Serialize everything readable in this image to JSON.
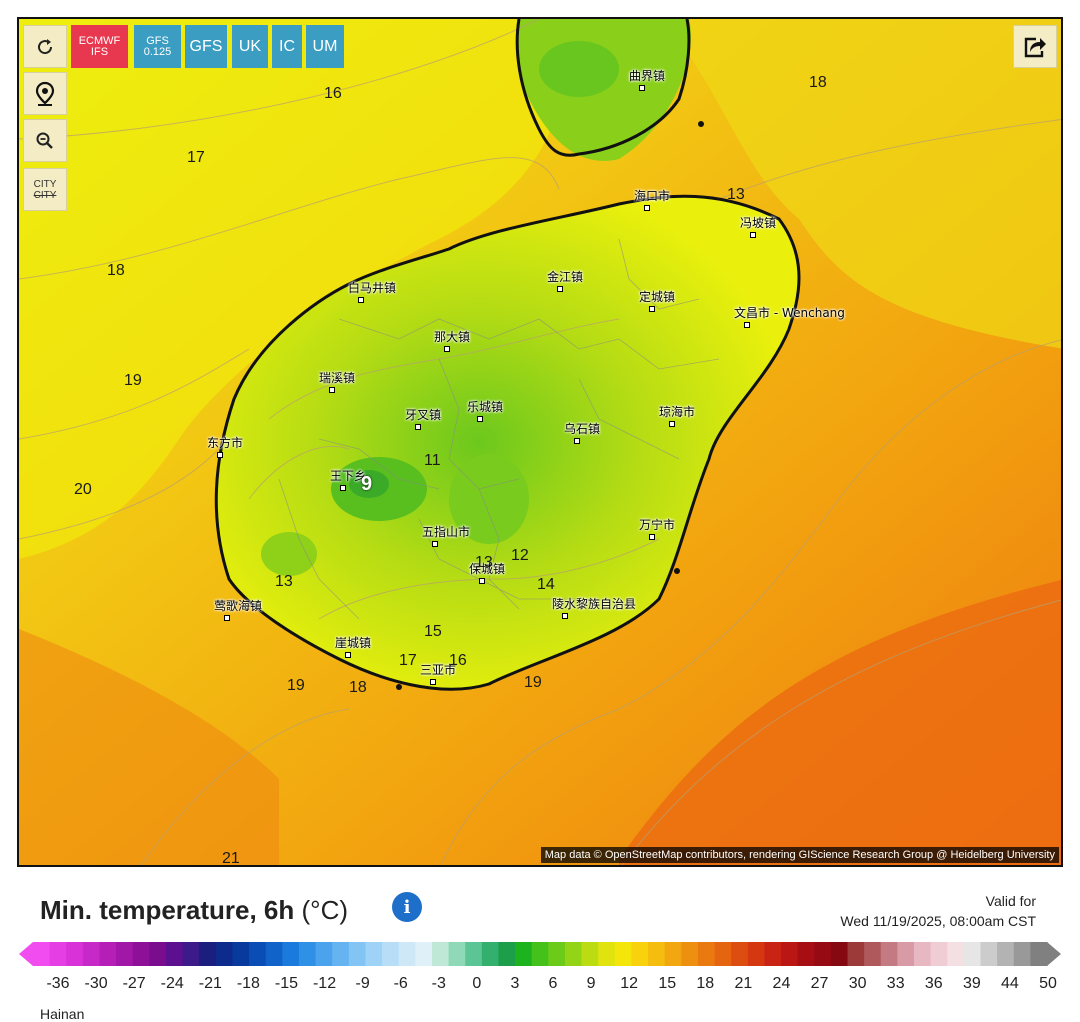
{
  "map": {
    "buttons": {
      "refresh_icon": "refresh-icon",
      "location_icon": "map-pin-icon",
      "zoom_icon": "zoom-out-icon",
      "city_toggle_top": "CITY",
      "city_toggle_bottom": "CITY",
      "share_icon": "share-icon"
    },
    "models": [
      {
        "line1": "ECMWF",
        "line2": "IFS",
        "color": "#e8384f",
        "active": true
      },
      {
        "line1": "GFS",
        "line2": "0.125",
        "color": "#3a9dc1",
        "active": false
      },
      {
        "line1": "GFS",
        "line2": "",
        "color": "#3a9dc1",
        "active": false
      },
      {
        "line1": "UK",
        "line2": "",
        "color": "#3a9dc1",
        "active": false
      },
      {
        "line1": "IC",
        "line2": "",
        "color": "#3a9dc1",
        "active": false
      },
      {
        "line1": "UM",
        "line2": "",
        "color": "#3a9dc1",
        "active": false
      }
    ],
    "cities": [
      {
        "name": "曲界镇"
      },
      {
        "name": "海口市"
      },
      {
        "name": "冯坡镇"
      },
      {
        "name": "金江镇"
      },
      {
        "name": "白马井镇"
      },
      {
        "name": "定城镇"
      },
      {
        "name": "文昌市 - Wenchang"
      },
      {
        "name": "那大镇"
      },
      {
        "name": "瑞溪镇"
      },
      {
        "name": "乐城镇"
      },
      {
        "name": "牙叉镇"
      },
      {
        "name": "乌石镇"
      },
      {
        "name": "琼海市"
      },
      {
        "name": "东方市"
      },
      {
        "name": "王下乡"
      },
      {
        "name": "五指山市"
      },
      {
        "name": "万宁市"
      },
      {
        "name": "保城镇"
      },
      {
        "name": "莺歌海镇"
      },
      {
        "name": "陵水黎族自治县"
      },
      {
        "name": "崖城镇"
      },
      {
        "name": "三亚市"
      }
    ],
    "isolines": [
      "16",
      "17",
      "18",
      "19",
      "20",
      "21",
      "18",
      "13",
      "9",
      "11",
      "12",
      "13",
      "14",
      "13",
      "15",
      "16",
      "17",
      "18",
      "19",
      "19"
    ],
    "attribution": "Map data © OpenStreetMap contributors, rendering GIScience Research Group @ Heidelberg University"
  },
  "legend": {
    "title": "Min. temperature, 6h",
    "unit": "(°C)",
    "valid_label": "Valid for",
    "valid_time": "Wed 11/19/2025, 08:00am CST",
    "ticks": [
      "-36",
      "-30",
      "-27",
      "-24",
      "-21",
      "-18",
      "-15",
      "-12",
      "-9",
      "-6",
      "-3",
      "0",
      "3",
      "6",
      "9",
      "12",
      "15",
      "18",
      "21",
      "24",
      "27",
      "30",
      "33",
      "36",
      "39",
      "44",
      "50"
    ],
    "colors": [
      "#f04cf0",
      "#e43ee4",
      "#d832d8",
      "#c728c8",
      "#b51fb8",
      "#a117a8",
      "#8e1098",
      "#7a0c8e",
      "#5c0f8f",
      "#3d1a8a",
      "#1b1e7e",
      "#0d2b8c",
      "#083a9e",
      "#0a4db4",
      "#0f63c9",
      "#1a7bdc",
      "#2e91e6",
      "#4aa3ec",
      "#65b4f1",
      "#82c4f4",
      "#9ed2f6",
      "#b8def7",
      "#cfe8f8",
      "#e0f0f8",
      "#bfe8d6",
      "#8fd8b8",
      "#5cc596",
      "#33b06e",
      "#1c9e4a",
      "#1cb31f",
      "#44c21b",
      "#6ccb19",
      "#94d417",
      "#bcdc12",
      "#e0e30e",
      "#f4e60a",
      "#f7d20d",
      "#f5bd0e",
      "#f2a60f",
      "#ee900f",
      "#ea7a0f",
      "#e5640f",
      "#de4d10",
      "#d53711",
      "#c92413",
      "#b91614",
      "#a70e14",
      "#950a13",
      "#860912",
      "#9c3a3a",
      "#b0595c",
      "#c47a82",
      "#d89ba6",
      "#e8b8c2",
      "#f0cdd4",
      "#f4dfe3",
      "#e6e6e6",
      "#cccccc",
      "#b3b3b3",
      "#999999",
      "#808080"
    ]
  },
  "region_label": "Hainan"
}
